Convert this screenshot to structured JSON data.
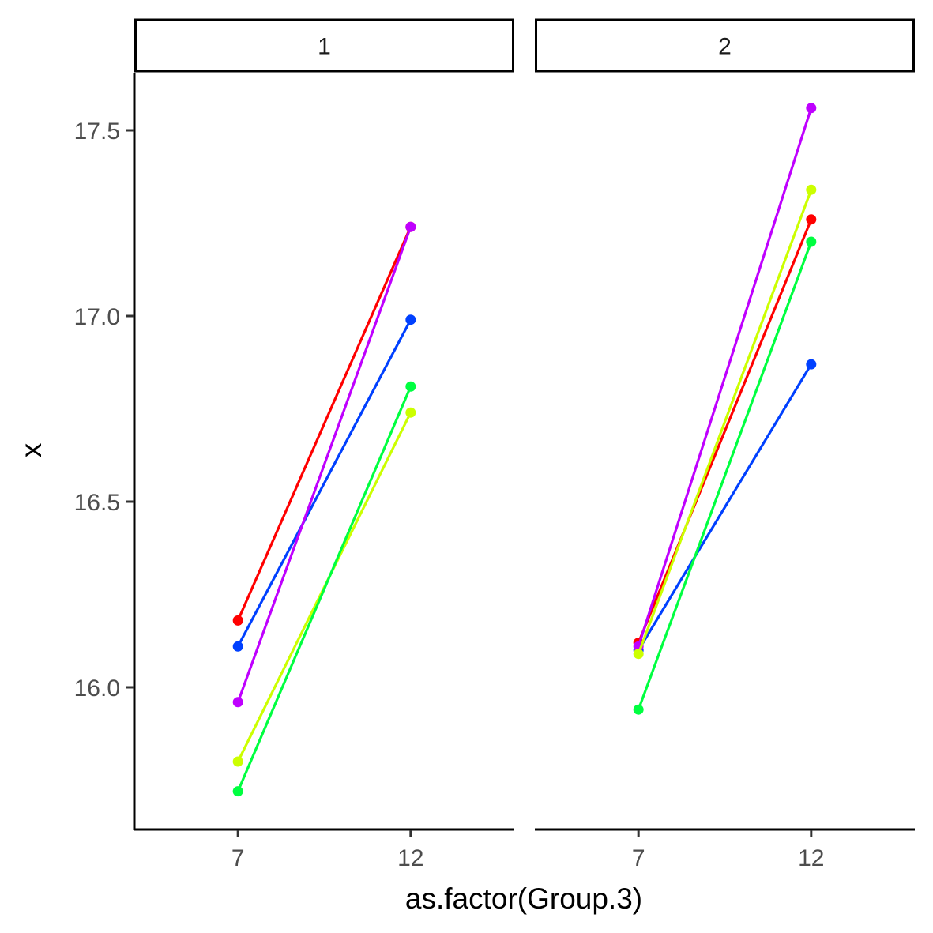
{
  "chart_data": {
    "type": "line",
    "facet_variable_labels": [
      "1",
      "2"
    ],
    "categories": [
      "7",
      "12"
    ],
    "xlabel": "as.factor(Group.3)",
    "ylabel": "x",
    "ylim": [
      15.65,
      17.65
    ],
    "y_ticks": [
      "16.0",
      "16.5",
      "17.0",
      "17.5"
    ],
    "y_tick_values": [
      16.0,
      16.5,
      17.0,
      17.5
    ],
    "grid": false,
    "legend": "none",
    "panels": [
      {
        "strip": "1",
        "series": [
          {
            "color": "#FF0000",
            "values": [
              16.18,
              17.24
            ]
          },
          {
            "color": "#0040FF",
            "values": [
              16.11,
              16.99
            ]
          },
          {
            "color": "#BF00FF",
            "values": [
              15.96,
              17.24
            ]
          },
          {
            "color": "#CCFF00",
            "values": [
              15.8,
              16.74
            ]
          },
          {
            "color": "#00FF40",
            "values": [
              15.72,
              16.81
            ]
          }
        ]
      },
      {
        "strip": "2",
        "series": [
          {
            "color": "#FF0000",
            "values": [
              16.12,
              17.26
            ]
          },
          {
            "color": "#0040FF",
            "values": [
              16.1,
              16.87
            ]
          },
          {
            "color": "#BF00FF",
            "values": [
              16.11,
              17.56
            ]
          },
          {
            "color": "#CCFF00",
            "values": [
              16.09,
              17.34
            ]
          },
          {
            "color": "#00FF40",
            "values": [
              15.94,
              17.2
            ]
          }
        ]
      }
    ]
  }
}
